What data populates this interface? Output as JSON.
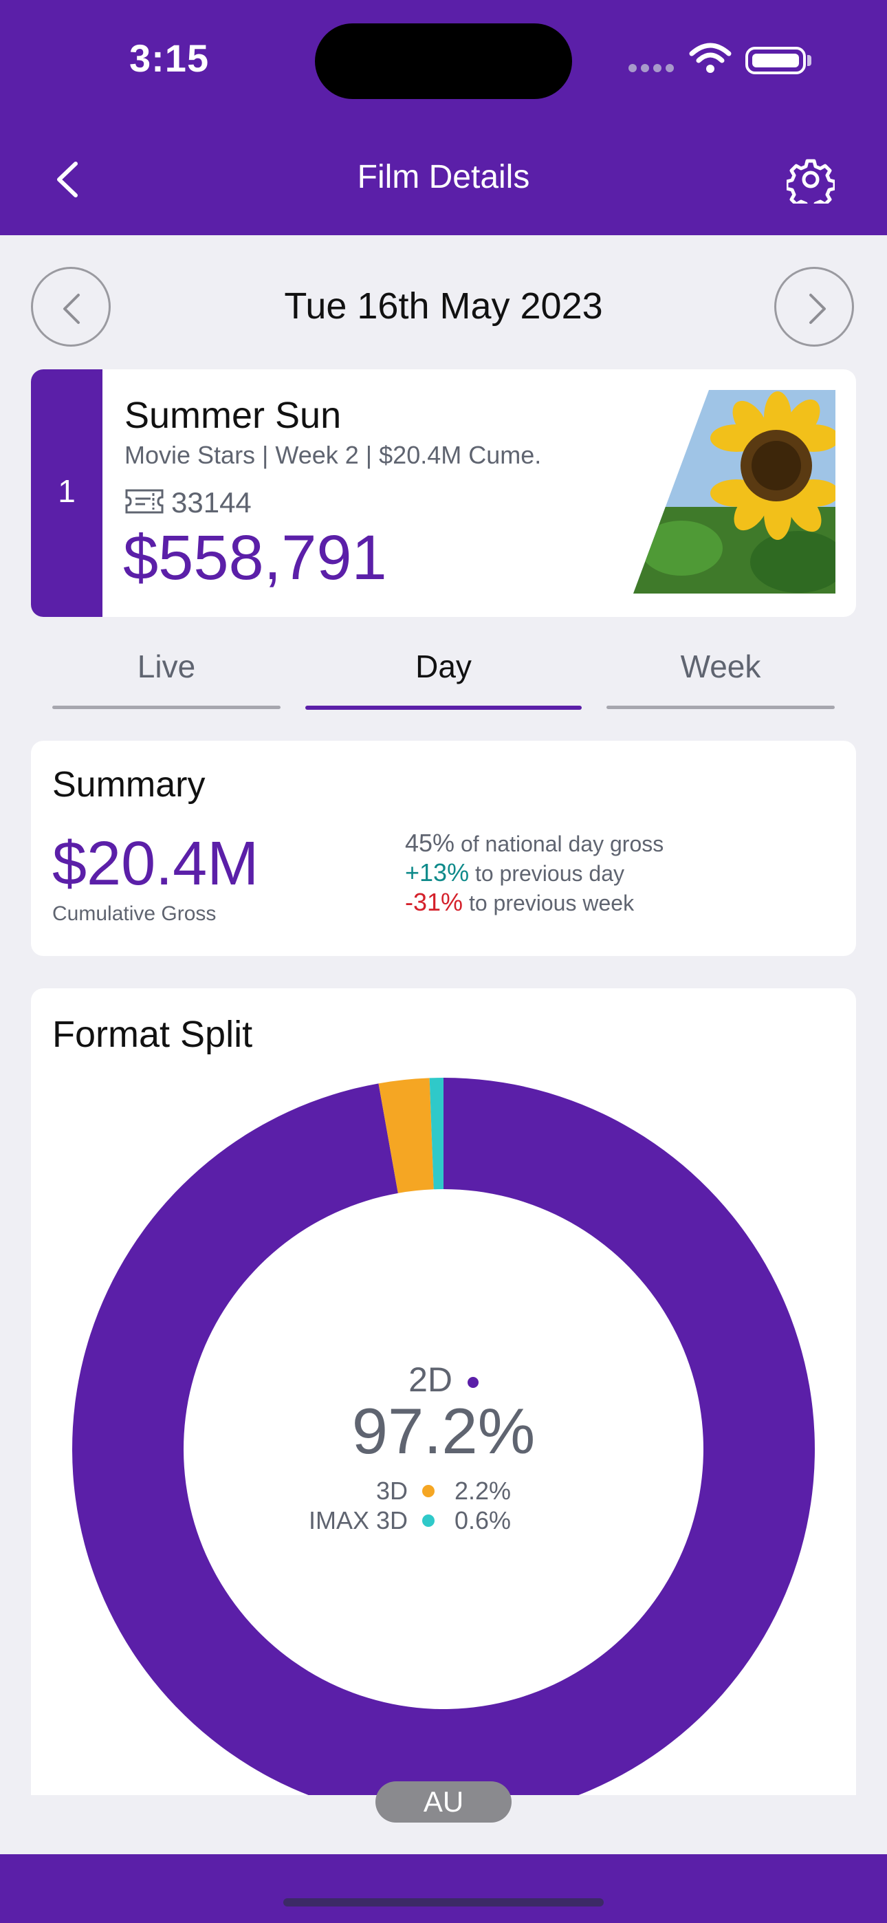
{
  "status_bar": {
    "time": "3:15"
  },
  "header": {
    "title": "Film Details",
    "back_icon": "chevron-left-icon",
    "settings_icon": "gear-icon"
  },
  "date_nav": {
    "date": "Tue 16th May 2023",
    "prev_icon": "chevron-left-icon",
    "next_icon": "chevron-right-icon"
  },
  "film": {
    "rank": "1",
    "title": "Summer Sun",
    "meta": "Movie Stars | Week 2 | $20.4M Cume.",
    "admissions": "33144",
    "gross": "$558,791",
    "ticket_icon": "ticket-icon"
  },
  "tabs": [
    {
      "label": "Live",
      "selected": false
    },
    {
      "label": "Day",
      "selected": true
    },
    {
      "label": "Week",
      "selected": false
    }
  ],
  "summary": {
    "title": "Summary",
    "cumulative_value": "$20.4M",
    "cumulative_label": "Cumulative Gross",
    "stats": [
      {
        "value": "45%",
        "text": " of national day gross",
        "tone": "grey"
      },
      {
        "value": "+13%",
        "text": " to previous day",
        "tone": "teal"
      },
      {
        "value": "-31%",
        "text": " to previous week",
        "tone": "red"
      }
    ]
  },
  "format_split": {
    "title": "Format Split",
    "center_label": "2D",
    "center_value": "97.2%",
    "legend": [
      {
        "name": "3D",
        "value": "2.2%",
        "color": "#f5a623"
      },
      {
        "name": "IMAX 3D",
        "value": "0.6%",
        "color": "#2fc9c9"
      }
    ]
  },
  "chart_data": {
    "type": "pie",
    "categories": [
      "2D",
      "3D",
      "IMAX 3D"
    ],
    "values": [
      97.2,
      2.2,
      0.6
    ],
    "colors": [
      "#5b1fa8",
      "#f5a623",
      "#2fc9c9"
    ],
    "title": "Format Split"
  },
  "region_pill": {
    "label": "AU"
  },
  "colors": {
    "brand": "#5b1fa8",
    "background": "#efeff4",
    "positive": "#0e8a8a",
    "negative": "#d4202a"
  }
}
